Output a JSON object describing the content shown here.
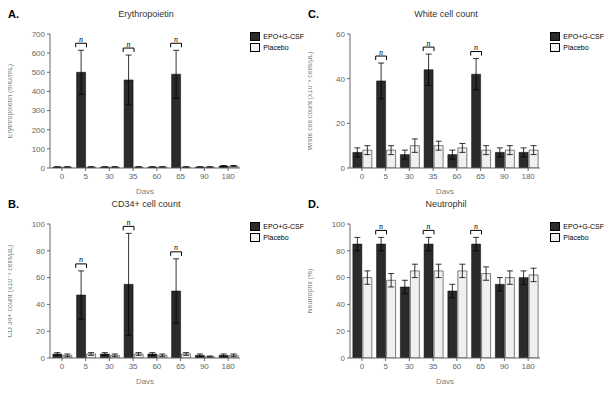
{
  "chart_data": [
    {
      "type": "bar",
      "title": "Erythropoietin",
      "x_label": "Days",
      "y_label": "Erythropoietin (mIU/mL)",
      "categories": [
        "0",
        "5",
        "30",
        "35",
        "60",
        "65",
        "90",
        "180"
      ],
      "series": [
        {
          "name": "EPO+G-CSF",
          "color": "#2b2b2b",
          "values": [
            5,
            500,
            5,
            460,
            5,
            490,
            5,
            10
          ],
          "errors": [
            2,
            115,
            2,
            130,
            2,
            125,
            2,
            3
          ]
        },
        {
          "name": "Placebo",
          "color": "#f0f0f0",
          "values": [
            5,
            5,
            5,
            5,
            5,
            5,
            5,
            10
          ],
          "errors": [
            2,
            2,
            2,
            2,
            2,
            2,
            2,
            3
          ]
        }
      ],
      "ylim": [
        0,
        700
      ],
      "yticks": [
        0,
        100,
        200,
        300,
        400,
        500,
        600,
        700
      ],
      "grid": false,
      "legend": "upper right",
      "annotations": [
        {
          "text": "A."
        },
        {
          "text": "n",
          "category": "5",
          "series": "EPO+G-CSF"
        },
        {
          "text": "n",
          "category": "35",
          "series": "EPO+G-CSF"
        },
        {
          "text": "n",
          "category": "65",
          "series": "EPO+G-CSF"
        }
      ]
    },
    {
      "type": "bar",
      "title": "CD34+ cell count",
      "x_label": "Days",
      "y_label": "CD 34+ count (x10⁻² cells/µL)",
      "categories": [
        "0",
        "5",
        "30",
        "35",
        "60",
        "65",
        "90",
        "180"
      ],
      "series": [
        {
          "name": "EPO+G-CSF",
          "color": "#2b2b2b",
          "values": [
            3,
            47,
            3,
            55,
            3,
            50,
            2,
            2
          ],
          "errors": [
            1,
            18,
            1,
            38,
            1,
            24,
            1,
            1
          ]
        },
        {
          "name": "Placebo",
          "color": "#f0f0f0",
          "values": [
            2,
            3,
            2,
            3,
            2,
            3,
            1,
            2
          ],
          "errors": [
            1,
            1,
            1,
            1,
            1,
            1,
            0.5,
            1
          ]
        }
      ],
      "ylim": [
        0,
        100
      ],
      "yticks": [
        0,
        20,
        40,
        60,
        80,
        100
      ],
      "grid": false,
      "legend": "upper right",
      "annotations": [
        {
          "text": "B."
        },
        {
          "text": "n",
          "category": "5",
          "series": "EPO+G-CSF"
        },
        {
          "text": "n",
          "category": "35",
          "series": "EPO+G-CSF"
        },
        {
          "text": "n",
          "category": "65",
          "series": "EPO+G-CSF"
        }
      ]
    },
    {
      "type": "bar",
      "title": "White cell count",
      "x_label": "Days",
      "y_label": "White cell count (x10⁻³ cells/µL)",
      "categories": [
        "0",
        "5",
        "30",
        "35",
        "60",
        "65",
        "90",
        "180"
      ],
      "series": [
        {
          "name": "EPO+G-CSF",
          "color": "#2b2b2b",
          "values": [
            7,
            39,
            6,
            44,
            6,
            42,
            7,
            7
          ],
          "errors": [
            2,
            8,
            2,
            7,
            2,
            7,
            2,
            2
          ]
        },
        {
          "name": "Placebo",
          "color": "#f0f0f0",
          "values": [
            8,
            8,
            10,
            10,
            9,
            8,
            8,
            8
          ],
          "errors": [
            2,
            2,
            3,
            2,
            2,
            2,
            2,
            2
          ]
        }
      ],
      "ylim": [
        0,
        60
      ],
      "yticks": [
        0,
        20,
        40,
        60
      ],
      "grid": false,
      "legend": "upper right",
      "annotations": [
        {
          "text": "C."
        },
        {
          "text": "n",
          "category": "5",
          "series": "EPO+G-CSF"
        },
        {
          "text": "n",
          "category": "35",
          "series": "EPO+G-CSF"
        },
        {
          "text": "n",
          "category": "65",
          "series": "EPO+G-CSF"
        }
      ]
    },
    {
      "type": "bar",
      "title": "Neutrophil",
      "x_label": "Days",
      "y_label": "Neutrophil (%)",
      "categories": [
        "0",
        "5",
        "30",
        "35",
        "60",
        "65",
        "90",
        "180"
      ],
      "series": [
        {
          "name": "EPO+G-CSF",
          "color": "#2b2b2b",
          "values": [
            85,
            85,
            53,
            85,
            50,
            85,
            55,
            60
          ],
          "errors": [
            5,
            5,
            5,
            5,
            5,
            5,
            5,
            5
          ]
        },
        {
          "name": "Placebo",
          "color": "#f0f0f0",
          "values": [
            60,
            58,
            65,
            65,
            65,
            63,
            60,
            62
          ],
          "errors": [
            5,
            5,
            5,
            5,
            5,
            5,
            5,
            5
          ]
        }
      ],
      "ylim": [
        0,
        100
      ],
      "yticks": [
        0,
        20,
        40,
        60,
        80,
        100
      ],
      "grid": false,
      "legend": "upper right",
      "annotations": [
        {
          "text": "D."
        },
        {
          "text": "n",
          "category": "5",
          "series": "EPO+G-CSF"
        },
        {
          "text": "n",
          "category": "35",
          "series": "EPO+G-CSF"
        },
        {
          "text": "n",
          "category": "65",
          "series": "EPO+G-CSF"
        }
      ]
    }
  ]
}
